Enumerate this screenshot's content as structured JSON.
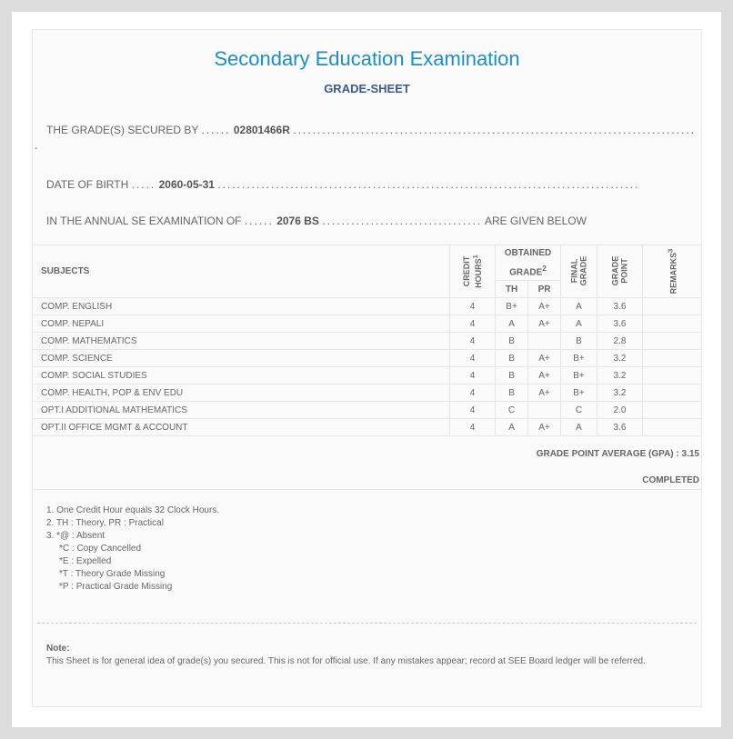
{
  "title": "Secondary Education Examination",
  "subtitle": "GRADE-SHEET",
  "secured_label": "THE GRADE(S) SECURED BY",
  "symbol_no": "02801466R",
  "dob_label": "DATE OF BIRTH",
  "dob": "2060-05-31",
  "exam_label": "IN THE ANNUAL SE EXAMINATION OF",
  "exam_year": "2076 BS",
  "given_below": "ARE GIVEN BELOW",
  "table": {
    "headers": {
      "subjects": "SUBJECTS",
      "credit": "CREDIT HOURS",
      "credit_sup": "1",
      "obtained": "OBTAINED GRADE",
      "obtained_sup": "2",
      "th": "TH",
      "pr": "PR",
      "final": "FINAL GRADE",
      "gp": "GRADE POINT",
      "remarks": "REMARKS",
      "remarks_sup": "3"
    },
    "rows": [
      {
        "subject": "COMP. ENGLISH",
        "credit": "4",
        "th": "B+",
        "pr": "A+",
        "final": "A",
        "gp": "3.6",
        "remarks": ""
      },
      {
        "subject": "COMP. NEPALI",
        "credit": "4",
        "th": "A",
        "pr": "A+",
        "final": "A",
        "gp": "3.6",
        "remarks": ""
      },
      {
        "subject": "COMP. MATHEMATICS",
        "credit": "4",
        "th": "B",
        "pr": "",
        "final": "B",
        "gp": "2.8",
        "remarks": ""
      },
      {
        "subject": "COMP. SCIENCE",
        "credit": "4",
        "th": "B",
        "pr": "A+",
        "final": "B+",
        "gp": "3.2",
        "remarks": ""
      },
      {
        "subject": "COMP. SOCIAL STUDIES",
        "credit": "4",
        "th": "B",
        "pr": "A+",
        "final": "B+",
        "gp": "3.2",
        "remarks": ""
      },
      {
        "subject": "COMP. HEALTH, POP & ENV EDU",
        "credit": "4",
        "th": "B",
        "pr": "A+",
        "final": "B+",
        "gp": "3.2",
        "remarks": ""
      },
      {
        "subject": "OPT.I ADDITIONAL MATHEMATICS",
        "credit": "4",
        "th": "C",
        "pr": "",
        "final": "C",
        "gp": "2.0",
        "remarks": ""
      },
      {
        "subject": "OPT.II OFFICE MGMT & ACCOUNT",
        "credit": "4",
        "th": "A",
        "pr": "A+",
        "final": "A",
        "gp": "3.6",
        "remarks": ""
      }
    ]
  },
  "gpa_label": "GRADE POINT AVERAGE (GPA) : 3.15",
  "status": "COMPLETED",
  "footnotes": [
    "1. One Credit Hour equals 32 Clock Hours.",
    "2. TH : Theory, PR : Practical",
    "3. *@ : Absent"
  ],
  "absent_codes": [
    "*C : Copy Cancelled",
    "*E : Expelled",
    "*T : Theory Grade Missing",
    "*P : Practical Grade Missing"
  ],
  "note_title": "Note:",
  "note_text": "This Sheet is for general idea of grade(s) you secured. This is not for official use. If any mistakes appear; record at SEE Board ledger will be referred."
}
